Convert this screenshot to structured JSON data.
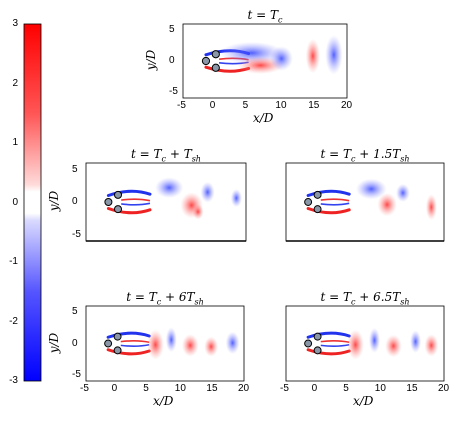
{
  "colorbar": {
    "ticks": [
      "3",
      "2",
      "1",
      "0",
      "-1",
      "-2",
      "-3"
    ],
    "positive_color": "#ff0000",
    "negative_color": "#0000ff"
  },
  "panels": [
    {
      "id": "p1",
      "title": "t = T_c",
      "xlabel": "x/D",
      "ylabel": "y/D",
      "xticks": [
        "-5",
        "0",
        "5",
        "10",
        "15",
        "20"
      ],
      "yticks": [
        "5",
        "0",
        "-5"
      ]
    },
    {
      "id": "p2",
      "title": "t = T_c + T_sh",
      "xlabel": "",
      "ylabel": "y/D",
      "xticks": [],
      "yticks": [
        "5",
        "0",
        "-5"
      ]
    },
    {
      "id": "p3",
      "title": "t = T_c + 1.5T_sh",
      "xlabel": "",
      "ylabel": "",
      "xticks": [],
      "yticks": []
    },
    {
      "id": "p4",
      "title": "t = T_c + 6T_sh",
      "xlabel": "x/D",
      "ylabel": "y/D",
      "xticks": [
        "-5",
        "0",
        "5",
        "10",
        "15",
        "20"
      ],
      "yticks": [
        "5",
        "0",
        "-5"
      ]
    },
    {
      "id": "p5",
      "title": "t = T_c + 6.5T_sh",
      "xlabel": "x/D",
      "ylabel": "",
      "xticks": [
        "-5",
        "0",
        "5",
        "10",
        "15",
        "20"
      ],
      "yticks": []
    }
  ]
}
